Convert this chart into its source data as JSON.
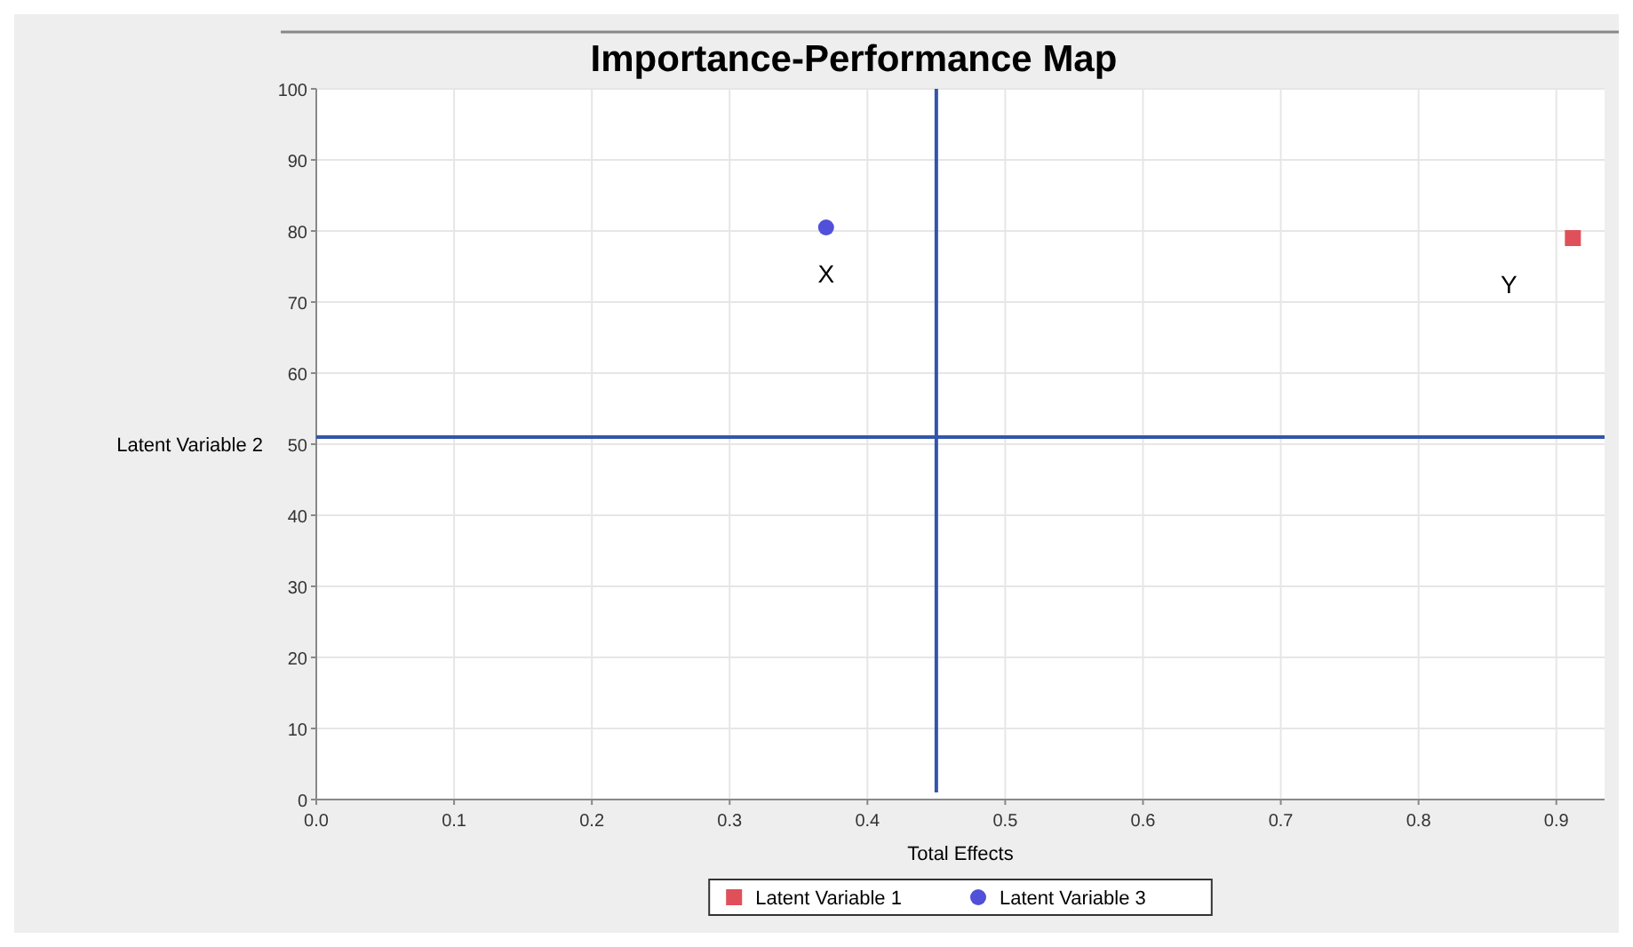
{
  "chart_data": {
    "type": "scatter",
    "title": "Importance-Performance Map",
    "xlabel": "Total Effects",
    "ylabel": "Latent Variable 2",
    "xlim": [
      0,
      0.935
    ],
    "ylim": [
      0,
      100
    ],
    "xticks": [
      {
        "value": 0,
        "label": "0.0"
      },
      0.1,
      0.2,
      0.3,
      0.4,
      0.5,
      0.6,
      0.7,
      0.8,
      0.9
    ],
    "yticks": [
      0,
      10,
      20,
      30,
      40,
      50,
      60,
      70,
      80,
      90,
      100
    ],
    "series": [
      {
        "name": "Latent Variable 1",
        "color": "#e0505a",
        "marker": "square",
        "x": [
          0.912
        ],
        "values": [
          79
        ]
      },
      {
        "name": "Latent Variable 3",
        "color": "#5050d8",
        "marker": "circle",
        "x": [
          0.37
        ],
        "values": [
          80.5
        ]
      }
    ],
    "ref_lines": [
      {
        "axis": "x",
        "value": 0.45,
        "color": "#3355aa"
      },
      {
        "axis": "y",
        "value": 51,
        "color": "#3355aa"
      }
    ],
    "annotations": [
      {
        "text": "X",
        "x": 0.37,
        "y": 80.5
      },
      {
        "text": "Y",
        "x": 0.912,
        "y": 79
      }
    ],
    "grid": true,
    "legend": "bottom"
  }
}
